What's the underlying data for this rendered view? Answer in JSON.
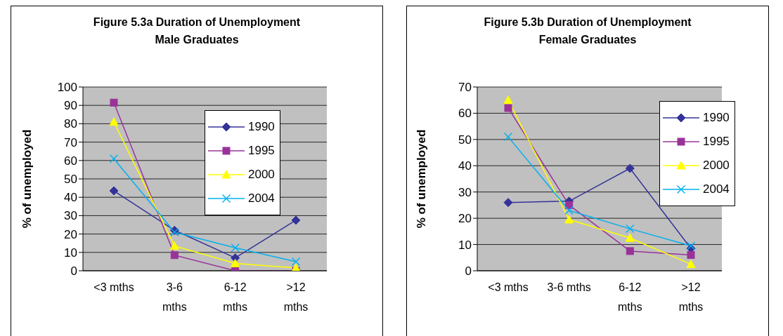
{
  "chart_data": [
    {
      "type": "line",
      "title": "Figure 5.3a Duration of Unemployment\nMale Graduates",
      "ylabel": "% of unemployed",
      "categories": [
        "<3 mths",
        "3-6 mths",
        "6-12 mths",
        ">12 mths"
      ],
      "ylim": [
        0,
        100
      ],
      "yticks": [
        0,
        10,
        20,
        30,
        40,
        50,
        60,
        70,
        80,
        90,
        100
      ],
      "grid": "y",
      "legend": "top right",
      "series": [
        {
          "name": "1990",
          "color": "#333399",
          "marker": "diamond",
          "values": [
            43.5,
            22,
            7,
            27.5
          ]
        },
        {
          "name": "1995",
          "color": "#993399",
          "marker": "square",
          "values": [
            91.5,
            8.5,
            0,
            0
          ]
        },
        {
          "name": "2000",
          "color": "#ffff00",
          "marker": "triangle",
          "values": [
            81,
            13.5,
            4,
            1.5
          ]
        },
        {
          "name": "2004",
          "color": "#00b0f0",
          "marker": "cross",
          "values": [
            61,
            21,
            12.5,
            5
          ]
        }
      ]
    },
    {
      "type": "line",
      "title": "Figure 5.3b Duration of Unemployment\nFemale Graduates",
      "ylabel": "% of unemployed",
      "categories": [
        "<3 mths",
        "3-6  mths",
        "6-12 mths",
        ">12 mths"
      ],
      "ylim": [
        0,
        70
      ],
      "yticks": [
        0,
        10,
        20,
        30,
        40,
        50,
        60,
        70
      ],
      "grid": "y",
      "legend": "top right",
      "series": [
        {
          "name": "1990",
          "color": "#333399",
          "marker": "diamond",
          "values": [
            26,
            26.5,
            39,
            8.5
          ]
        },
        {
          "name": "1995",
          "color": "#993399",
          "marker": "square",
          "values": [
            62,
            25,
            7.5,
            6
          ]
        },
        {
          "name": "2000",
          "color": "#ffff00",
          "marker": "triangle",
          "values": [
            65,
            19.5,
            12.5,
            2.5
          ]
        },
        {
          "name": "2004",
          "color": "#00b0f0",
          "marker": "cross",
          "values": [
            51,
            23,
            16,
            9.5
          ]
        }
      ]
    }
  ]
}
